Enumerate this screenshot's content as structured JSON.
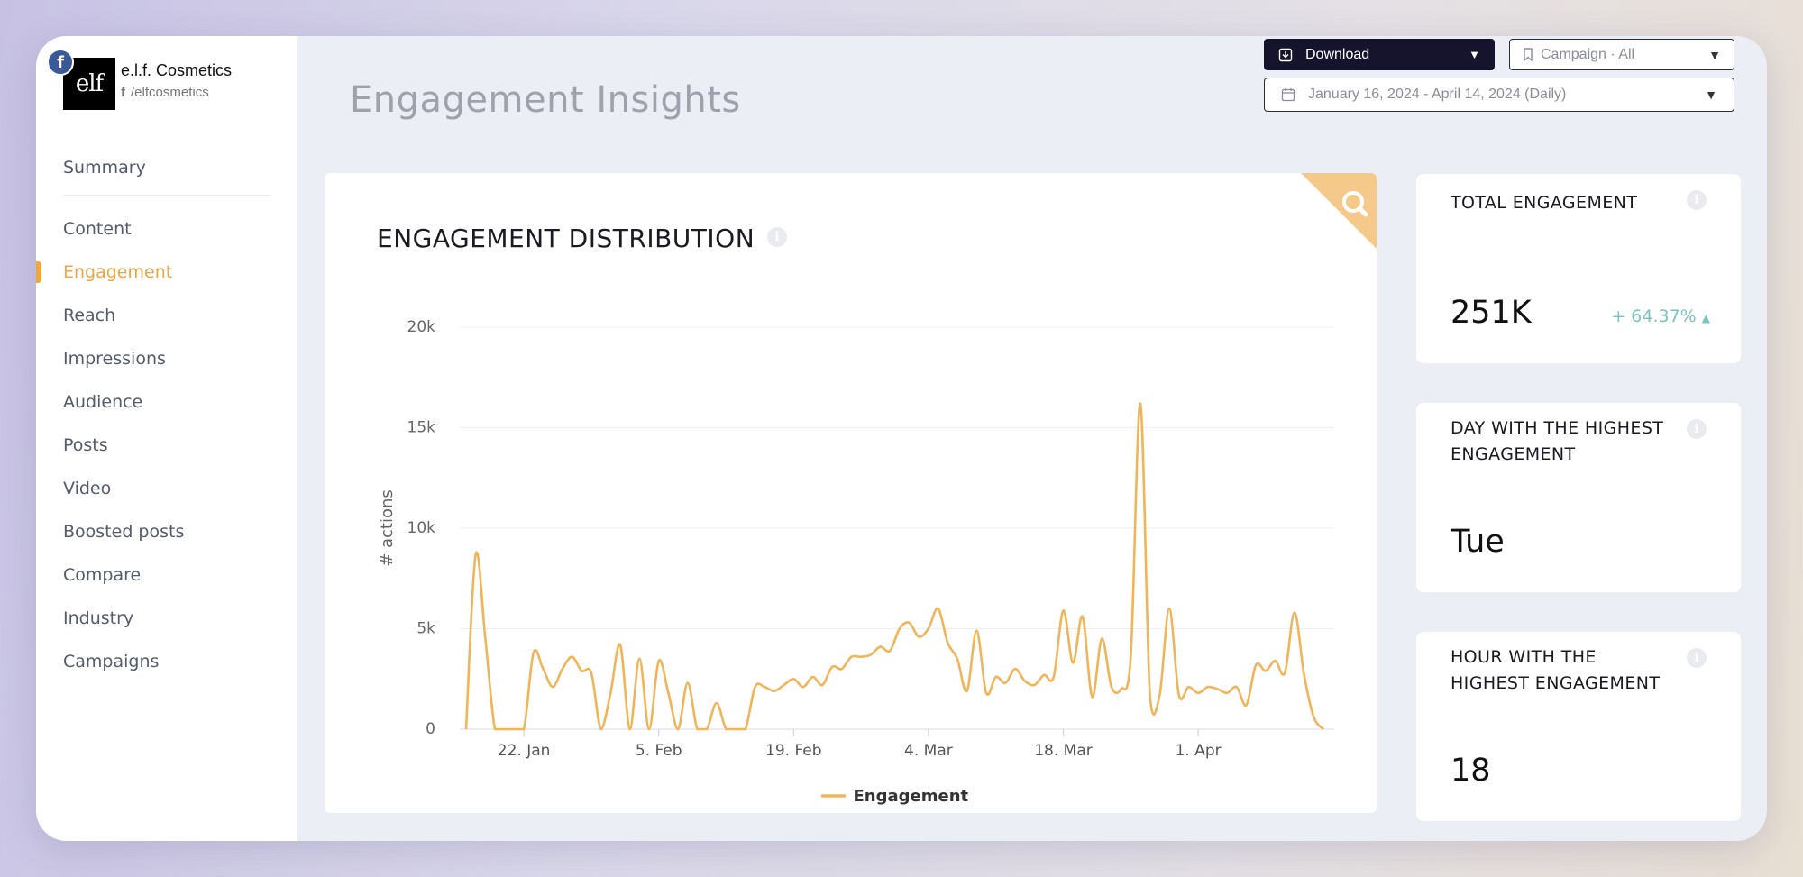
{
  "brand": {
    "network_badge": "f",
    "logo_text": "elf",
    "name": "e.l.f. Cosmetics",
    "handle": "/elfcosmetics"
  },
  "nav": {
    "summary": "Summary",
    "items": [
      {
        "label": "Content",
        "active": false
      },
      {
        "label": "Engagement",
        "active": true
      },
      {
        "label": "Reach",
        "active": false
      },
      {
        "label": "Impressions",
        "active": false
      },
      {
        "label": "Audience",
        "active": false
      },
      {
        "label": "Posts",
        "active": false
      },
      {
        "label": "Video",
        "active": false
      },
      {
        "label": "Boosted posts",
        "active": false
      },
      {
        "label": "Compare",
        "active": false
      },
      {
        "label": "Industry",
        "active": false
      },
      {
        "label": "Campaigns",
        "active": false
      }
    ]
  },
  "header": {
    "title": "Engagement Insights",
    "download_label": "Download",
    "campaign_label": "Campaign · All",
    "date_range": "January 16, 2024 - April 14, 2024 (Daily)"
  },
  "chart_card": {
    "title": "ENGAGEMENT DISTRIBUTION"
  },
  "chart_data": {
    "type": "line",
    "title": "ENGAGEMENT DISTRIBUTION",
    "xlabel": "",
    "ylabel": "# actions",
    "x_start": "2024-01-16",
    "x_end": "2024-04-14",
    "ylim": [
      0,
      20000
    ],
    "y_ticks": [
      {
        "value": 0,
        "label": "0"
      },
      {
        "value": 5000,
        "label": "5k"
      },
      {
        "value": 10000,
        "label": "10k"
      },
      {
        "value": 15000,
        "label": "15k"
      },
      {
        "value": 20000,
        "label": "20k"
      }
    ],
    "x_ticks": [
      {
        "date": "2024-01-22",
        "label": "22. Jan"
      },
      {
        "date": "2024-02-05",
        "label": "5. Feb"
      },
      {
        "date": "2024-02-19",
        "label": "19. Feb"
      },
      {
        "date": "2024-03-04",
        "label": "4. Mar"
      },
      {
        "date": "2024-03-18",
        "label": "18. Mar"
      },
      {
        "date": "2024-04-01",
        "label": "1. Apr"
      }
    ],
    "grid": true,
    "legend": "bottom-center",
    "series": [
      {
        "name": "Engagement",
        "color": "#f0b55a",
        "points": [
          [
            "2024-01-16",
            0
          ],
          [
            "2024-01-17",
            8700
          ],
          [
            "2024-01-18",
            4500
          ],
          [
            "2024-01-19",
            0
          ],
          [
            "2024-01-20",
            0
          ],
          [
            "2024-01-21",
            0
          ],
          [
            "2024-01-22",
            0
          ],
          [
            "2024-01-23",
            3800
          ],
          [
            "2024-01-24",
            3000
          ],
          [
            "2024-01-25",
            2100
          ],
          [
            "2024-01-26",
            3000
          ],
          [
            "2024-01-27",
            3600
          ],
          [
            "2024-01-28",
            2900
          ],
          [
            "2024-01-29",
            2800
          ],
          [
            "2024-01-30",
            0
          ],
          [
            "2024-01-31",
            1800
          ],
          [
            "2024-02-01",
            4200
          ],
          [
            "2024-02-02",
            0
          ],
          [
            "2024-02-03",
            3500
          ],
          [
            "2024-02-04",
            0
          ],
          [
            "2024-02-05",
            3400
          ],
          [
            "2024-02-06",
            1800
          ],
          [
            "2024-02-07",
            0
          ],
          [
            "2024-02-08",
            2300
          ],
          [
            "2024-02-09",
            0
          ],
          [
            "2024-02-10",
            0
          ],
          [
            "2024-02-11",
            1300
          ],
          [
            "2024-02-12",
            0
          ],
          [
            "2024-02-13",
            0
          ],
          [
            "2024-02-14",
            0
          ],
          [
            "2024-02-15",
            2100
          ],
          [
            "2024-02-16",
            2100
          ],
          [
            "2024-02-17",
            1900
          ],
          [
            "2024-02-18",
            2200
          ],
          [
            "2024-02-19",
            2500
          ],
          [
            "2024-02-20",
            2100
          ],
          [
            "2024-02-21",
            2600
          ],
          [
            "2024-02-22",
            2200
          ],
          [
            "2024-02-23",
            3100
          ],
          [
            "2024-02-24",
            3000
          ],
          [
            "2024-02-25",
            3600
          ],
          [
            "2024-02-26",
            3600
          ],
          [
            "2024-02-27",
            3700
          ],
          [
            "2024-02-28",
            4100
          ],
          [
            "2024-02-29",
            3900
          ],
          [
            "2024-03-01",
            5000
          ],
          [
            "2024-03-02",
            5300
          ],
          [
            "2024-03-03",
            4600
          ],
          [
            "2024-03-04",
            5000
          ],
          [
            "2024-03-05",
            6000
          ],
          [
            "2024-03-06",
            4300
          ],
          [
            "2024-03-07",
            3500
          ],
          [
            "2024-03-08",
            1900
          ],
          [
            "2024-03-09",
            4900
          ],
          [
            "2024-03-10",
            1800
          ],
          [
            "2024-03-11",
            2600
          ],
          [
            "2024-03-12",
            2300
          ],
          [
            "2024-03-13",
            3000
          ],
          [
            "2024-03-14",
            2400
          ],
          [
            "2024-03-15",
            2200
          ],
          [
            "2024-03-16",
            2700
          ],
          [
            "2024-03-17",
            2600
          ],
          [
            "2024-03-18",
            5900
          ],
          [
            "2024-03-19",
            3300
          ],
          [
            "2024-03-20",
            5600
          ],
          [
            "2024-03-21",
            1600
          ],
          [
            "2024-03-22",
            4500
          ],
          [
            "2024-03-23",
            2100
          ],
          [
            "2024-03-24",
            2000
          ],
          [
            "2024-03-25",
            3600
          ],
          [
            "2024-03-26",
            16200
          ],
          [
            "2024-03-27",
            1600
          ],
          [
            "2024-03-28",
            1700
          ],
          [
            "2024-03-29",
            6000
          ],
          [
            "2024-03-30",
            1700
          ],
          [
            "2024-03-31",
            2100
          ],
          [
            "2024-04-01",
            1800
          ],
          [
            "2024-04-02",
            2100
          ],
          [
            "2024-04-03",
            2000
          ],
          [
            "2024-04-04",
            1800
          ],
          [
            "2024-04-05",
            2100
          ],
          [
            "2024-04-06",
            1200
          ],
          [
            "2024-04-07",
            3200
          ],
          [
            "2024-04-08",
            2900
          ],
          [
            "2024-04-09",
            3400
          ],
          [
            "2024-04-10",
            2800
          ],
          [
            "2024-04-11",
            5800
          ],
          [
            "2024-04-12",
            2700
          ],
          [
            "2024-04-13",
            600
          ],
          [
            "2024-04-14",
            0
          ]
        ]
      }
    ]
  },
  "stats": [
    {
      "label": "TOTAL ENGAGEMENT",
      "value": "251K",
      "change": "+ 64.37%",
      "change_direction": "up"
    },
    {
      "label": "DAY WITH THE HIGHEST ENGAGEMENT",
      "value": "Tue"
    },
    {
      "label": "HOUR WITH THE HIGHEST ENGAGEMENT",
      "value": "18"
    }
  ],
  "colors": {
    "accent": "#eaa746",
    "line": "#f0b55a",
    "positive": "#7cc3bf",
    "dark_button": "#16142d",
    "zoom_corner": "#f5c98a"
  },
  "icons": {
    "network": "facebook-icon",
    "download": "download-icon",
    "campaign": "bookmark-icon",
    "date": "calendar-icon",
    "zoom": "search-icon",
    "info": "info-icon",
    "trend": "triangle-up-icon"
  }
}
